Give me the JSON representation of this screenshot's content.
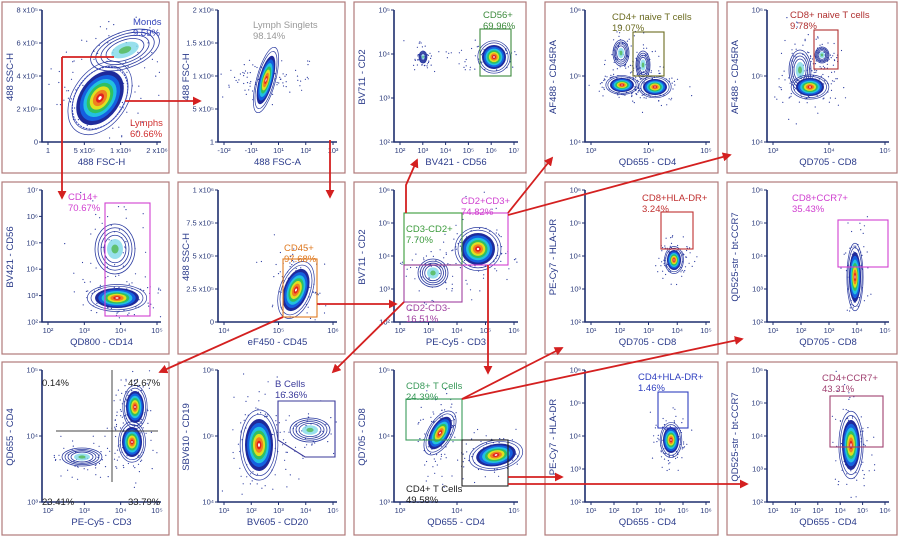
{
  "colors": {
    "arrow": "#d42020",
    "panel_border": "#b07a7a",
    "axis": "#1e2e6e"
  },
  "panels": [
    {
      "id": "fsc-ssc",
      "x_label": "488 FSC-H",
      "y_label": "488 SSC-H",
      "x_ticks": [
        "1",
        "5 x10⁵",
        "1 x10⁶",
        "2 x10⁶"
      ],
      "y_ticks": [
        "0",
        "2 x10⁵",
        "4 x10⁵",
        "6 x10⁵",
        "8 x10⁵"
      ],
      "gates": [
        {
          "name": "Monos",
          "pct": "9.59%",
          "color": "#3344bb"
        },
        {
          "name": "Lymphs",
          "pct": "60.66%",
          "color": "#d03030"
        }
      ]
    },
    {
      "id": "singlets",
      "x_label": "488 FSC-A",
      "y_label": "488 FSC-H",
      "x_ticks": [
        "-10²",
        "-10¹",
        "10¹",
        "10²",
        "10³"
      ],
      "y_ticks": [
        "1",
        "5 x10⁵",
        "1 x10⁶",
        "1.5 x10⁶",
        "2 x10⁶"
      ],
      "gates": [
        {
          "name": "Lymph Singlets",
          "pct": "98.14%",
          "color": "#999999"
        }
      ]
    },
    {
      "id": "cd56",
      "x_label": "BV421 - CD56",
      "y_label": "BV711 - CD2",
      "x_ticks": [
        "10²",
        "10³",
        "10⁴",
        "10⁵",
        "10⁶",
        "10⁷"
      ],
      "y_ticks": [
        "10²",
        "10³",
        "10⁴",
        "10⁵"
      ],
      "gates": [
        {
          "name": "CD56+",
          "pct": "69.96%",
          "color": "#3c8a3c"
        }
      ]
    },
    {
      "id": "cd4-naive",
      "x_label": "QD655 - CD4",
      "y_label": "AF488 - CD45RA",
      "x_ticks": [
        "10³",
        "10⁴",
        "10⁵"
      ],
      "y_ticks": [
        "10⁴",
        "10⁵",
        "10⁶"
      ],
      "gates": [
        {
          "name": "CD4+ naive T cells",
          "pct": "19.07%",
          "color": "#6b6b20"
        }
      ]
    },
    {
      "id": "cd8-naive",
      "x_label": "QD705 - CD8",
      "y_label": "AF488 - CD45RA",
      "x_ticks": [
        "10³",
        "10⁴",
        "10⁵"
      ],
      "y_ticks": [
        "10⁴",
        "10⁵",
        "10⁶"
      ],
      "gates": [
        {
          "name": "CD8+ naive T cells",
          "pct": "9.78%",
          "color": "#b03030"
        }
      ]
    },
    {
      "id": "cd14",
      "x_label": "QD800 - CD14",
      "y_label": "BV421 - CD56",
      "x_ticks": [
        "10²",
        "10³",
        "10⁴",
        "10⁵"
      ],
      "y_ticks": [
        "10²",
        "10³",
        "10⁴",
        "10⁵",
        "10⁶",
        "10⁷"
      ],
      "gates": [
        {
          "name": "CD14+",
          "pct": "70.67%",
          "color": "#d040d0"
        }
      ]
    },
    {
      "id": "cd45",
      "x_label": "eF450 - CD45",
      "y_label": "488 SSC-H",
      "x_ticks": [
        "10⁴",
        "10⁵",
        "10⁶"
      ],
      "y_ticks": [
        "0",
        "2.5 x10⁵",
        "5 x10⁵",
        "7.5 x10⁵",
        "1 x10⁶"
      ],
      "gates": [
        {
          "name": "CD45+",
          "pct": "97.68%",
          "color": "#e07a20"
        }
      ]
    },
    {
      "id": "cd2-cd3",
      "x_label": "PE-Cy5 - CD3",
      "y_label": "BV711 - CD2",
      "x_ticks": [
        "10²",
        "10³",
        "10⁴",
        "10⁵",
        "10⁶"
      ],
      "y_ticks": [
        "10²",
        "10³",
        "10⁴",
        "10⁵",
        "10⁶"
      ],
      "gates": [
        {
          "name": "CD2+CD3+",
          "pct": "74.82%",
          "color": "#d040d0"
        },
        {
          "name": "CD3-CD2+",
          "pct": "7.70%",
          "color": "#3a9a3a"
        },
        {
          "name": "CD2-CD3-",
          "pct": "16.51%",
          "color": "#a040a0"
        }
      ]
    },
    {
      "id": "cd8-hladr",
      "x_label": "QD705 - CD8",
      "y_label": "PE-Cy7 - HLA-DR",
      "x_ticks": [
        "10¹",
        "10²",
        "10³",
        "10⁴",
        "10⁵"
      ],
      "y_ticks": [
        "10²",
        "10³",
        "10⁴",
        "10⁵",
        "10⁶"
      ],
      "gates": [
        {
          "name": "CD8+HLA-DR+",
          "pct": "3.24%",
          "color": "#c03030"
        }
      ]
    },
    {
      "id": "cd8-ccr7",
      "x_label": "QD705 - CD8",
      "y_label": "QD525-str - bt-CCR7",
      "x_ticks": [
        "10¹",
        "10²",
        "10³",
        "10⁴",
        "10⁵"
      ],
      "y_ticks": [
        "10²",
        "10³",
        "10⁴",
        "10⁵",
        "10⁶"
      ],
      "gates": [
        {
          "name": "CD8+CCR7+",
          "pct": "35.43%",
          "color": "#d040d0"
        }
      ]
    },
    {
      "id": "cd3-cd4",
      "x_label": "PE-Cy5 - CD3",
      "y_label": "QD655 - CD4",
      "x_ticks": [
        "10²",
        "10³",
        "10⁴",
        "10⁵"
      ],
      "y_ticks": [
        "10³",
        "10⁴",
        "10⁵"
      ],
      "gates": [
        {
          "name": "",
          "pct": "0.14%",
          "color": "#222222"
        },
        {
          "name": "",
          "pct": "42.67%",
          "color": "#222222"
        },
        {
          "name": "",
          "pct": "23.41%",
          "color": "#222222"
        },
        {
          "name": "",
          "pct": "33.79%",
          "color": "#222222"
        }
      ]
    },
    {
      "id": "b-cells",
      "x_label": "BV605 - CD20",
      "y_label": "SBV610 - CD19",
      "x_ticks": [
        "10¹",
        "10²",
        "10³",
        "10⁴",
        "10⁵"
      ],
      "y_ticks": [
        "10⁴",
        "10⁵",
        "10⁶"
      ],
      "gates": [
        {
          "name": "B Cells",
          "pct": "16.36%",
          "color": "#3a3a9a"
        }
      ]
    },
    {
      "id": "cd4-cd8",
      "x_label": "QD655 - CD4",
      "y_label": "QD705 - CD8",
      "x_ticks": [
        "10³",
        "10⁴",
        "10⁵"
      ],
      "y_ticks": [
        "10³",
        "10⁴",
        "10⁵"
      ],
      "gates": [
        {
          "name": "CD8+ T Cells",
          "pct": "24.39%",
          "color": "#3a9a5a"
        },
        {
          "name": "CD4+ T Cells",
          "pct": "49.58%",
          "color": "#222222"
        }
      ]
    },
    {
      "id": "cd4-hladr",
      "x_label": "QD655 - CD4",
      "y_label": "PE-Cy7 - HLA-DR",
      "x_ticks": [
        "10¹",
        "10²",
        "10³",
        "10⁴",
        "10⁵",
        "10⁶"
      ],
      "y_ticks": [
        "10²",
        "10³",
        "10⁴",
        "10⁵",
        "10⁶"
      ],
      "gates": [
        {
          "name": "CD4+HLA-DR+",
          "pct": "1.46%",
          "color": "#3040c0"
        }
      ]
    },
    {
      "id": "cd4-ccr7",
      "x_label": "QD655 - CD4",
      "y_label": "QD525-str - bt-CCR7",
      "x_ticks": [
        "10¹",
        "10²",
        "10³",
        "10⁴",
        "10⁵",
        "10⁶"
      ],
      "y_ticks": [
        "10²",
        "10³",
        "10⁴",
        "10⁵",
        "10⁶"
      ],
      "gates": [
        {
          "name": "CD4+CCR7+",
          "pct": "43.31%",
          "color": "#a04070"
        }
      ]
    }
  ]
}
